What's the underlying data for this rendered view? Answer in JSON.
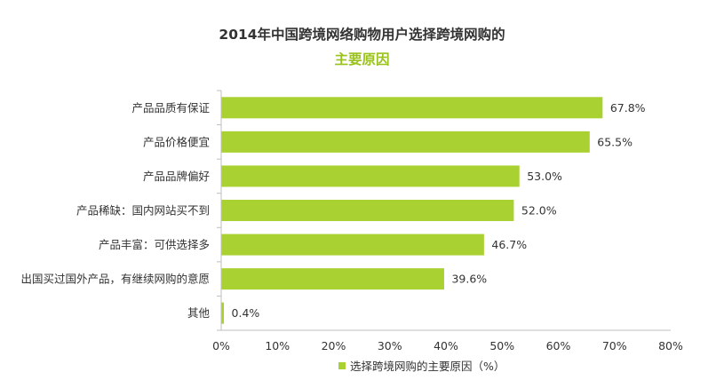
{
  "chart_data": {
    "type": "bar",
    "orientation": "horizontal",
    "title": "2014年中国跨境网络购物用户选择跨境网购的",
    "subtitle": "主要原因",
    "categories": [
      "产品品质有保证",
      "产品价格便宜",
      "产品品牌偏好",
      "产品稀缺：国内网站买不到",
      "产品丰富：可供选择多",
      "出国买过国外产品，有继续网购的意愿",
      "其他"
    ],
    "series": [
      {
        "name": "选择跨境网购的主要原因（%）",
        "values": [
          67.8,
          65.5,
          53.0,
          52.0,
          46.7,
          39.6,
          0.4
        ],
        "labels": [
          "67.8%",
          "65.5%",
          "53.0%",
          "52.0%",
          "46.7%",
          "39.6%",
          "0.4%"
        ]
      }
    ],
    "xlim": [
      0,
      80
    ],
    "xticks": [
      0,
      10,
      20,
      30,
      40,
      50,
      60,
      70,
      80
    ],
    "xtick_labels": [
      "0%",
      "10%",
      "20%",
      "30%",
      "40%",
      "50%",
      "60%",
      "70%",
      "80%"
    ],
    "xlabel": "",
    "ylabel": "",
    "grid": false,
    "legend_position": "bottom",
    "colors": {
      "bar": "#a9d131",
      "subtitle": "#9ac21c",
      "axis": "#bfbfbf",
      "text": "#333333"
    }
  }
}
